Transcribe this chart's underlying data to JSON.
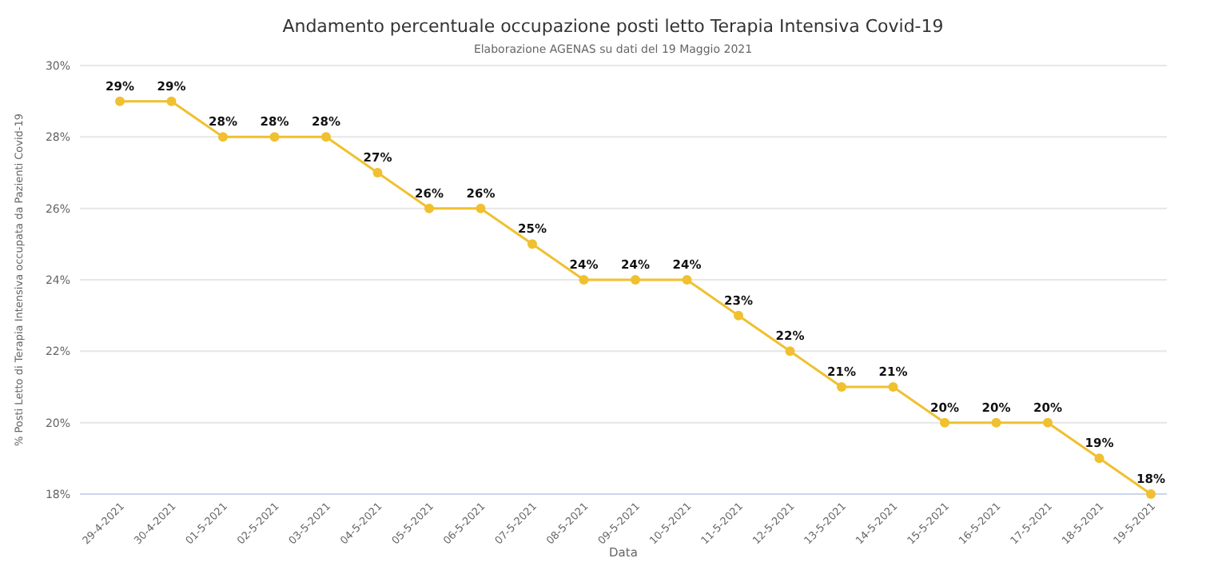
{
  "chart_data": {
    "type": "line",
    "title": "Andamento percentuale occupazione posti letto Terapia Intensiva Covid-19",
    "subtitle": "Elaborazione AGENAS su dati del 19 Maggio 2021",
    "xlabel": "Data",
    "ylabel": "% Posti Letto di Terapia Intensiva occupata da Pazienti Covid-19",
    "categories": [
      "29-4-2021",
      "30-4-2021",
      "01-5-2021",
      "02-5-2021",
      "03-5-2021",
      "04-5-2021",
      "05-5-2021",
      "06-5-2021",
      "07-5-2021",
      "08-5-2021",
      "09-5-2021",
      "10-5-2021",
      "11-5-2021",
      "12-5-2021",
      "13-5-2021",
      "14-5-2021",
      "15-5-2021",
      "16-5-2021",
      "17-5-2021",
      "18-5-2021",
      "19-5-2021"
    ],
    "values": [
      29,
      29,
      28,
      28,
      28,
      27,
      26,
      26,
      25,
      24,
      24,
      24,
      23,
      22,
      21,
      21,
      20,
      20,
      20,
      19,
      18
    ],
    "value_labels": [
      "29%",
      "29%",
      "28%",
      "28%",
      "28%",
      "27%",
      "26%",
      "26%",
      "25%",
      "24%",
      "24%",
      "24%",
      "23%",
      "22%",
      "21%",
      "21%",
      "20%",
      "20%",
      "20%",
      "19%",
      "18%"
    ],
    "color": "#f0c030",
    "marker": "circle",
    "line_style": "solid",
    "grid": "y",
    "ylim": [
      18,
      30
    ],
    "yticks": [
      {
        "value": 18,
        "label": "18%"
      },
      {
        "value": 20,
        "label": "20%"
      },
      {
        "value": 22,
        "label": "22%"
      },
      {
        "value": 24,
        "label": "24%"
      },
      {
        "value": 26,
        "label": "26%"
      },
      {
        "value": 28,
        "label": "28%"
      },
      {
        "value": 30,
        "label": "30%"
      }
    ]
  }
}
